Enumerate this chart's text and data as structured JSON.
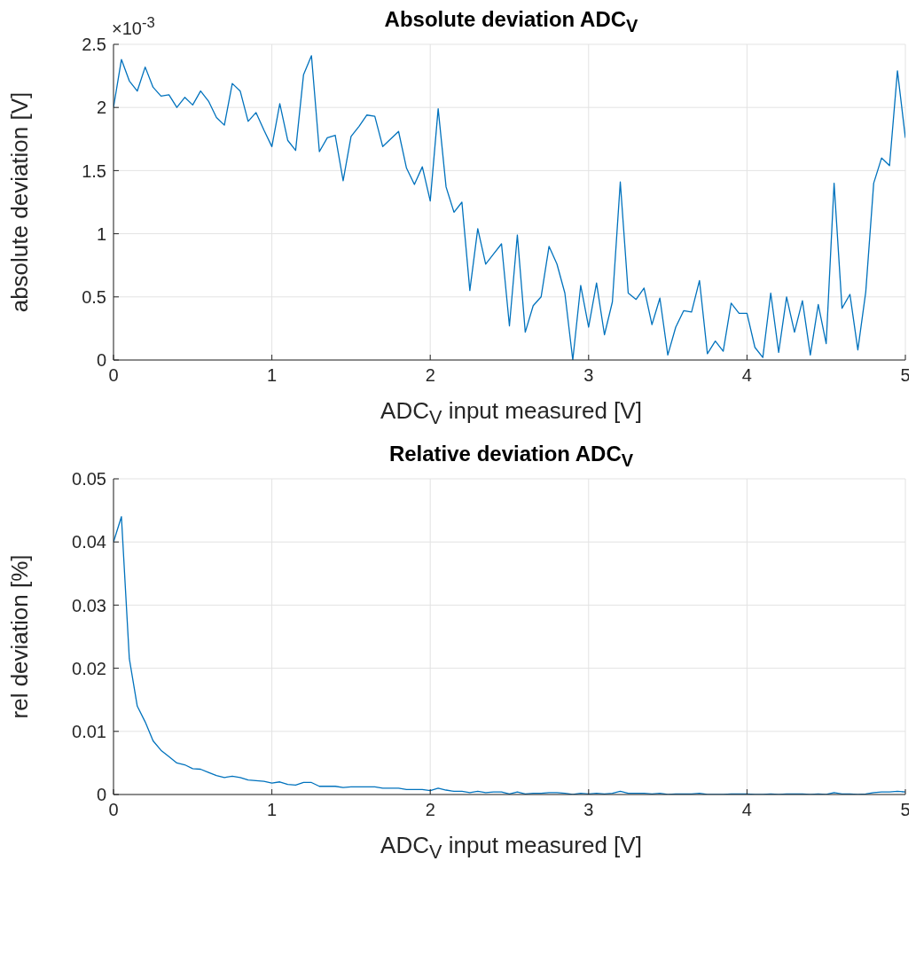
{
  "chart_data": [
    {
      "type": "line",
      "title": "Absolute deviation ADC$_{V}$",
      "xlabel": "ADC$_{V}$ input measured [V]",
      "ylabel": "absolute deviation [V]",
      "annotations": [
        "×10$^{-3}$"
      ],
      "x": [
        0,
        0.05,
        0.1,
        0.15,
        0.2,
        0.25,
        0.3,
        0.35,
        0.4,
        0.45,
        0.5,
        0.55,
        0.6,
        0.65,
        0.7,
        0.75,
        0.8,
        0.85,
        0.9,
        0.95,
        1,
        1.05,
        1.1,
        1.15,
        1.2,
        1.25,
        1.3,
        1.35,
        1.4,
        1.45,
        1.5,
        1.55,
        1.6,
        1.65,
        1.7,
        1.75,
        1.8,
        1.85,
        1.9,
        1.95,
        2,
        2.05,
        2.1,
        2.15,
        2.2,
        2.25,
        2.3,
        2.35,
        2.4,
        2.45,
        2.5,
        2.55,
        2.6,
        2.65,
        2.7,
        2.75,
        2.8,
        2.85,
        2.9,
        2.95,
        3,
        3.05,
        3.1,
        3.15,
        3.2,
        3.25,
        3.3,
        3.35,
        3.4,
        3.45,
        3.5,
        3.55,
        3.6,
        3.65,
        3.7,
        3.75,
        3.8,
        3.85,
        3.9,
        3.95,
        4,
        4.05,
        4.1,
        4.15,
        4.2,
        4.25,
        4.3,
        4.35,
        4.4,
        4.45,
        4.5,
        4.55,
        4.6,
        4.65,
        4.7,
        4.75,
        4.8,
        4.85,
        4.9,
        4.95,
        5
      ],
      "series": [
        {
          "color": "#0072bd",
          "values": [
            2.0,
            2.38,
            2.21,
            2.13,
            2.32,
            2.16,
            2.09,
            2.1,
            2.0,
            2.08,
            2.02,
            2.13,
            2.05,
            1.92,
            1.86,
            2.19,
            2.13,
            1.89,
            1.96,
            1.82,
            1.69,
            2.03,
            1.74,
            1.66,
            2.26,
            2.41,
            1.65,
            1.76,
            1.78,
            1.42,
            1.77,
            1.85,
            1.94,
            1.93,
            1.69,
            1.75,
            1.81,
            1.52,
            1.39,
            1.53,
            1.26,
            1.99,
            1.37,
            1.17,
            1.25,
            0.55,
            1.04,
            0.76,
            0.84,
            0.92,
            0.27,
            0.99,
            0.22,
            0.43,
            0.5,
            0.9,
            0.76,
            0.53,
            0.0,
            0.59,
            0.26,
            0.61,
            0.2,
            0.46,
            1.41,
            0.53,
            0.48,
            0.57,
            0.28,
            0.49,
            0.04,
            0.26,
            0.39,
            0.38,
            0.63,
            0.05,
            0.15,
            0.07,
            0.45,
            0.37,
            0.37,
            0.1,
            0.02,
            0.53,
            0.06,
            0.5,
            0.22,
            0.47,
            0.04,
            0.44,
            0.13,
            1.4,
            0.41,
            0.52,
            0.08,
            0.54,
            1.4,
            1.6,
            1.54,
            2.29,
            1.76
          ]
        }
      ],
      "xlim": [
        0,
        5
      ],
      "xticks": [
        0,
        1,
        2,
        3,
        4,
        5
      ],
      "ylim": [
        0,
        2.5
      ],
      "yticks": [
        0,
        0.5,
        1,
        1.5,
        2,
        2.5
      ],
      "grid": true,
      "marker": "none",
      "line_style": "solid"
    },
    {
      "type": "line",
      "title": "Relative deviation ADC$_{V}$",
      "xlabel": "ADC$_{V}$ input measured [V]",
      "ylabel": "rel deviation [%]",
      "x": [
        0,
        0.05,
        0.1,
        0.15,
        0.2,
        0.25,
        0.3,
        0.35,
        0.4,
        0.45,
        0.5,
        0.55,
        0.6,
        0.65,
        0.7,
        0.75,
        0.8,
        0.85,
        0.9,
        0.95,
        1,
        1.05,
        1.1,
        1.15,
        1.2,
        1.25,
        1.3,
        1.35,
        1.4,
        1.45,
        1.5,
        1.55,
        1.6,
        1.65,
        1.7,
        1.75,
        1.8,
        1.85,
        1.9,
        1.95,
        2,
        2.05,
        2.1,
        2.15,
        2.2,
        2.25,
        2.3,
        2.35,
        2.4,
        2.45,
        2.5,
        2.55,
        2.6,
        2.65,
        2.7,
        2.75,
        2.8,
        2.85,
        2.9,
        2.95,
        3,
        3.05,
        3.1,
        3.15,
        3.2,
        3.25,
        3.3,
        3.35,
        3.4,
        3.45,
        3.5,
        3.55,
        3.6,
        3.65,
        3.7,
        3.75,
        3.8,
        3.85,
        3.9,
        3.95,
        4,
        4.05,
        4.1,
        4.15,
        4.2,
        4.25,
        4.3,
        4.35,
        4.4,
        4.45,
        4.5,
        4.55,
        4.6,
        4.65,
        4.7,
        4.75,
        4.8,
        4.85,
        4.9,
        4.95,
        5
      ],
      "series": [
        {
          "color": "#0072bd",
          "values": [
            0.04,
            0.044,
            0.0215,
            0.014,
            0.0115,
            0.0085,
            0.007,
            0.006,
            0.005,
            0.0047,
            0.0041,
            0.004,
            0.0035,
            0.003,
            0.0027,
            0.0029,
            0.0027,
            0.0023,
            0.0022,
            0.0021,
            0.0018,
            0.002,
            0.0016,
            0.0015,
            0.0019,
            0.0019,
            0.0013,
            0.0013,
            0.0013,
            0.0011,
            0.0012,
            0.0012,
            0.0012,
            0.0012,
            0.001,
            0.001,
            0.001,
            0.0008,
            0.0008,
            0.0008,
            0.0006,
            0.001,
            0.0007,
            0.0005,
            0.0005,
            0.0003,
            0.0005,
            0.0003,
            0.0004,
            0.0004,
            0.0001,
            0.0004,
            0.0001,
            0.0002,
            0.0002,
            0.0003,
            0.0003,
            0.0002,
            0,
            0.0002,
            0.0001,
            0.0002,
            0.0001,
            0.0002,
            0.0005,
            0.0002,
            0.0002,
            0.0002,
            0.0001,
            0.0002,
            0,
            0.0001,
            0.0001,
            0.0001,
            0.0002,
            0,
            0,
            0,
            0.0001,
            0.0001,
            0.0001,
            0,
            0,
            0.0001,
            0,
            0.0001,
            0.0001,
            0.0001,
            0,
            0.0001,
            0,
            0.0003,
            0.0001,
            0.0001,
            0,
            0.0001,
            0.0003,
            0.0004,
            0.0004,
            0.0005,
            0.0004
          ]
        }
      ],
      "xlim": [
        0,
        5
      ],
      "xticks": [
        0,
        1,
        2,
        3,
        4,
        5
      ],
      "ylim": [
        0,
        0.05
      ],
      "yticks": [
        0,
        0.01,
        0.02,
        0.03,
        0.04,
        0.05
      ],
      "grid": true,
      "marker": "none",
      "line_style": "solid"
    }
  ]
}
